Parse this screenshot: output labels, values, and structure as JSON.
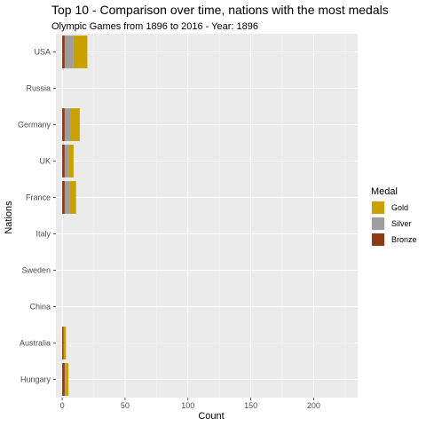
{
  "chart_data": {
    "type": "bar",
    "orientation": "horizontal",
    "stacked": true,
    "title": "Top 10 - Comparison over time, nations with the most medals",
    "subtitle": "Olympic Games from 1896 to 2016 - Year: 1896",
    "xlabel": "Count",
    "ylabel": "Nations",
    "xlim": [
      -5,
      235
    ],
    "xticks": [
      0,
      50,
      100,
      150,
      200
    ],
    "grid": true,
    "legend_title": "Medal",
    "legend_position": "right",
    "categories": [
      "USA",
      "Russia",
      "Germany",
      "UK",
      "France",
      "Italy",
      "Sweden",
      "China",
      "Australia",
      "Hungary"
    ],
    "series": [
      {
        "name": "Bronze",
        "color": "#8B3A1A",
        "values": [
          2,
          0,
          2,
          2,
          2,
          0,
          0,
          0,
          1,
          2
        ]
      },
      {
        "name": "Silver",
        "color": "#9E9E9E",
        "values": [
          7,
          0,
          5,
          3,
          4,
          0,
          0,
          0,
          0,
          1
        ]
      },
      {
        "name": "Gold",
        "color": "#C9A200",
        "values": [
          11,
          0,
          7,
          4,
          5,
          0,
          0,
          0,
          2,
          2
        ]
      }
    ],
    "legend_order": [
      "Gold",
      "Silver",
      "Bronze"
    ]
  }
}
